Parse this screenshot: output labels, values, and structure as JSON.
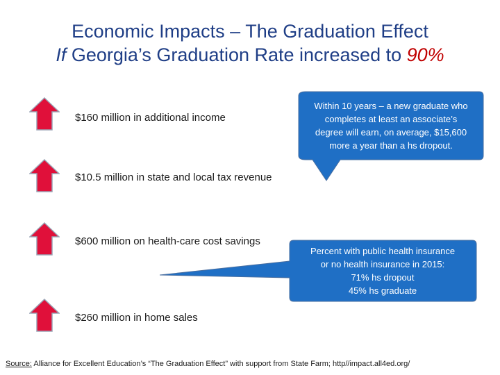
{
  "title": {
    "line1": "Economic Impacts – The Graduation Effect",
    "line2_if": "If",
    "line2_rest": " Georgia’s Graduation Rate increased to ",
    "line2_accent": "90%"
  },
  "items": [
    {
      "text": "$160 million in additional income"
    },
    {
      "text": "$10.5 million in state and local tax revenue"
    },
    {
      "text": "$600 million on health-care cost savings"
    },
    {
      "text": "$260 million in home sales"
    }
  ],
  "callouts": [
    {
      "lines": [
        "Within 10 years – a new graduate who",
        "completes at least an associate’s",
        "degree will earn, on average, $15,600",
        "more a year than a hs dropout."
      ]
    },
    {
      "lines": [
        "Percent with public health insurance",
        "or no health insurance in 2015:",
        "71% hs dropout",
        "45% hs graduate"
      ]
    }
  ],
  "source": {
    "label": "Source:",
    "text": " Alliance for Excellent Education’s “The Graduation Effect” with support from State Farm; http//impact.all4ed.org/"
  },
  "colors": {
    "title": "#1f3e86",
    "accent": "#c00000",
    "arrow": "#e0103a",
    "callout": "#1f6fc5"
  }
}
